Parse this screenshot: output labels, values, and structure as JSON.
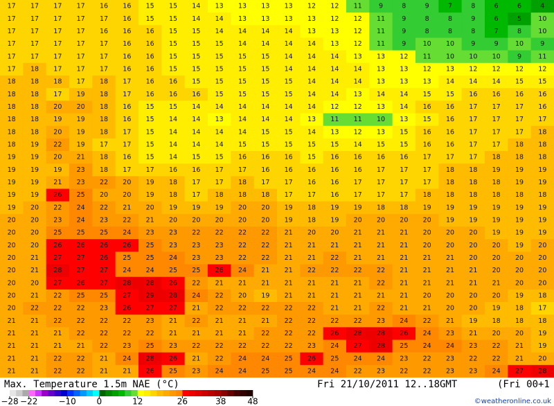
{
  "map": {
    "title": "Max. Temperature 1.5m NAE (°C)",
    "valid_time": "Fri 21/10/2011 12..18GMT",
    "run": "(Fri 00+1",
    "credit": "©weatheronline.co.uk",
    "grid": [
      [
        17,
        17,
        17,
        17,
        16,
        16,
        15,
        15,
        14,
        13,
        13,
        13,
        13,
        12,
        12,
        11,
        9,
        8,
        9,
        7,
        8,
        6,
        6,
        4
      ],
      [
        17,
        17,
        17,
        17,
        17,
        16,
        15,
        15,
        14,
        14,
        13,
        13,
        13,
        13,
        12,
        12,
        11,
        9,
        8,
        8,
        9,
        6,
        5,
        10
      ],
      [
        17,
        17,
        17,
        17,
        16,
        16,
        16,
        15,
        15,
        14,
        14,
        14,
        14,
        13,
        13,
        12,
        11,
        9,
        8,
        8,
        8,
        7,
        8,
        10
      ],
      [
        17,
        17,
        17,
        17,
        17,
        16,
        16,
        15,
        15,
        15,
        14,
        14,
        14,
        14,
        13,
        12,
        11,
        9,
        10,
        10,
        9,
        9,
        10,
        9
      ],
      [
        17,
        17,
        17,
        17,
        17,
        16,
        16,
        15,
        15,
        15,
        15,
        15,
        14,
        14,
        14,
        13,
        13,
        12,
        11,
        10,
        10,
        10,
        9,
        11
      ],
      [
        17,
        18,
        17,
        17,
        17,
        16,
        16,
        15,
        15,
        15,
        15,
        15,
        14,
        14,
        14,
        14,
        13,
        13,
        12,
        13,
        12,
        12,
        12,
        12
      ],
      [
        18,
        18,
        18,
        17,
        18,
        17,
        16,
        16,
        15,
        15,
        15,
        15,
        15,
        14,
        14,
        14,
        13,
        13,
        13,
        14,
        14,
        14,
        15,
        15
      ],
      [
        18,
        18,
        17,
        19,
        18,
        17,
        16,
        16,
        16,
        15,
        15,
        15,
        15,
        14,
        14,
        13,
        14,
        14,
        15,
        15,
        16,
        16,
        16,
        16
      ],
      [
        18,
        18,
        20,
        20,
        18,
        16,
        15,
        15,
        14,
        14,
        14,
        14,
        14,
        14,
        12,
        12,
        13,
        14,
        16,
        16,
        17,
        17,
        17,
        16
      ],
      [
        18,
        18,
        19,
        19,
        18,
        16,
        15,
        14,
        14,
        13,
        14,
        14,
        14,
        13,
        11,
        11,
        10,
        13,
        15,
        16,
        17,
        17,
        17,
        17
      ],
      [
        18,
        18,
        20,
        19,
        18,
        17,
        15,
        14,
        14,
        14,
        14,
        15,
        15,
        14,
        13,
        12,
        13,
        15,
        16,
        16,
        17,
        17,
        17,
        18
      ],
      [
        18,
        19,
        22,
        19,
        17,
        17,
        15,
        14,
        14,
        14,
        15,
        15,
        15,
        15,
        15,
        14,
        15,
        15,
        16,
        16,
        17,
        17,
        18,
        18
      ],
      [
        19,
        19,
        20,
        21,
        18,
        16,
        15,
        14,
        15,
        15,
        16,
        16,
        16,
        15,
        16,
        16,
        16,
        16,
        17,
        17,
        17,
        18,
        18,
        18
      ],
      [
        19,
        19,
        19,
        23,
        18,
        17,
        17,
        16,
        16,
        17,
        17,
        16,
        16,
        16,
        16,
        16,
        17,
        17,
        17,
        18,
        18,
        19,
        19,
        19
      ],
      [
        19,
        19,
        21,
        23,
        22,
        20,
        19,
        18,
        17,
        17,
        18,
        17,
        17,
        16,
        16,
        17,
        17,
        17,
        17,
        18,
        18,
        18,
        19,
        19
      ],
      [
        19,
        19,
        26,
        25,
        20,
        20,
        19,
        18,
        17,
        18,
        18,
        18,
        17,
        17,
        16,
        17,
        17,
        17,
        18,
        18,
        18,
        18,
        18,
        18
      ],
      [
        19,
        20,
        22,
        24,
        22,
        21,
        20,
        19,
        19,
        19,
        20,
        20,
        19,
        18,
        19,
        19,
        18,
        18,
        19,
        19,
        19,
        19,
        19,
        19
      ],
      [
        20,
        20,
        23,
        24,
        23,
        22,
        21,
        20,
        20,
        20,
        20,
        20,
        19,
        18,
        19,
        20,
        20,
        20,
        20,
        19,
        19,
        19,
        19,
        19
      ],
      [
        20,
        20,
        25,
        25,
        25,
        24,
        23,
        23,
        22,
        22,
        22,
        22,
        21,
        20,
        20,
        21,
        21,
        21,
        20,
        20,
        20,
        19,
        19,
        19
      ],
      [
        20,
        20,
        26,
        26,
        26,
        26,
        25,
        23,
        23,
        23,
        22,
        22,
        21,
        21,
        21,
        21,
        21,
        21,
        20,
        20,
        20,
        20,
        19,
        20
      ],
      [
        20,
        21,
        27,
        27,
        26,
        25,
        25,
        24,
        23,
        23,
        22,
        22,
        21,
        21,
        22,
        21,
        21,
        21,
        21,
        21,
        20,
        20,
        20,
        20
      ],
      [
        20,
        21,
        28,
        27,
        27,
        24,
        24,
        25,
        25,
        26,
        24,
        21,
        21,
        22,
        22,
        22,
        22,
        21,
        21,
        21,
        21,
        20,
        20,
        20
      ],
      [
        20,
        20,
        27,
        26,
        27,
        28,
        28,
        26,
        22,
        21,
        21,
        21,
        21,
        21,
        21,
        21,
        22,
        21,
        21,
        21,
        21,
        21,
        20,
        20
      ],
      [
        20,
        21,
        22,
        25,
        25,
        27,
        29,
        28,
        24,
        22,
        20,
        19,
        21,
        21,
        21,
        21,
        21,
        21,
        20,
        20,
        20,
        20,
        19,
        18
      ],
      [
        20,
        22,
        22,
        22,
        23,
        26,
        27,
        27,
        21,
        22,
        22,
        22,
        22,
        22,
        21,
        21,
        22,
        21,
        21,
        20,
        20,
        19,
        18,
        17
      ],
      [
        21,
        21,
        22,
        22,
        22,
        22,
        23,
        21,
        22,
        21,
        21,
        21,
        22,
        22,
        22,
        22,
        23,
        24,
        22,
        21,
        19,
        18,
        18,
        18
      ],
      [
        21,
        21,
        21,
        22,
        22,
        22,
        22,
        21,
        21,
        21,
        21,
        22,
        22,
        22,
        26,
        28,
        28,
        26,
        24,
        23,
        21,
        20,
        20,
        19
      ],
      [
        21,
        21,
        21,
        21,
        22,
        23,
        25,
        23,
        22,
        22,
        22,
        22,
        22,
        23,
        24,
        27,
        28,
        25,
        24,
        24,
        23,
        22,
        21,
        19
      ],
      [
        21,
        21,
        22,
        22,
        21,
        24,
        28,
        26,
        21,
        22,
        24,
        24,
        25,
        26,
        25,
        24,
        24,
        23,
        22,
        23,
        22,
        22,
        21,
        20
      ],
      [
        21,
        21,
        22,
        22,
        21,
        21,
        26,
        25,
        23,
        24,
        24,
        25,
        25,
        24,
        24,
        22,
        23,
        22,
        22,
        23,
        23,
        24,
        27,
        28
      ]
    ],
    "colorbar": {
      "ticks": [
        {
          "value": -28,
          "label": "−28"
        },
        {
          "value": -22,
          "label": "−22"
        },
        {
          "value": -10,
          "label": "−10"
        },
        0,
        12,
        26,
        38,
        48
      ],
      "colors": [
        "#e6e6e6",
        "#cccccc",
        "#aaaaaa",
        "#ff66ff",
        "#cc33ff",
        "#9900cc",
        "#6600cc",
        "#3300cc",
        "#0000cc",
        "#0033ff",
        "#0066ff",
        "#0099ff",
        "#00ccff",
        "#00ffff",
        "#006600",
        "#008800",
        "#00a000",
        "#00b800",
        "#33cc33",
        "#66dd33",
        "#ffff00",
        "#ffee00",
        "#ffd500",
        "#ffbb00",
        "#ffaa00",
        "#ff9900",
        "#ff8800",
        "#ff0000",
        "#ee0000",
        "#dd0000",
        "#cc0000",
        "#bb0000",
        "#aa0000",
        "#880000",
        "#660000",
        "#440000",
        "#330000",
        "#220000"
      ]
    }
  }
}
